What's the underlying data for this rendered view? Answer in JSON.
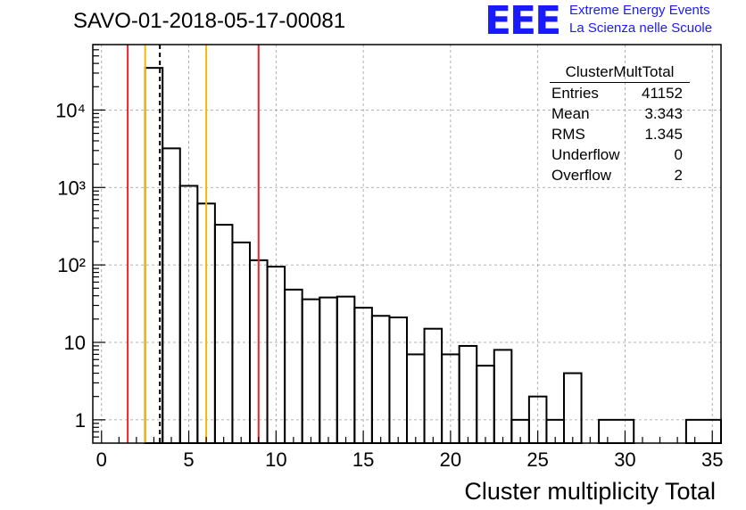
{
  "header": {
    "title": "SAVO-01-2018-05-17-00081",
    "logo_text": "EEE",
    "tagline_1": "Extreme Energy Events",
    "tagline_2": "La Scienza nelle Scuole"
  },
  "stats_box": {
    "name": "ClusterMultTotal",
    "rows": [
      {
        "label": "Entries",
        "value": "41152"
      },
      {
        "label": "Mean",
        "value": "3.343"
      },
      {
        "label": "RMS",
        "value": "1.345"
      },
      {
        "label": "Underflow",
        "value": "0"
      },
      {
        "label": "Overflow",
        "value": "2"
      }
    ]
  },
  "colors": {
    "red_line": "#e8262a",
    "yellow_line": "#f5b800",
    "logo": "#1a1aff",
    "grid": "#9a9a9a",
    "histogram": "#000000"
  },
  "chart_data": {
    "type": "histogram",
    "title": "SAVO-01-2018-05-17-00081",
    "xlabel": "Cluster multiplicity Total",
    "ylabel": "",
    "xlim": [
      -0.5,
      35.5
    ],
    "ylim": [
      0.5,
      70000
    ],
    "yscale": "log",
    "grid": true,
    "bin_width": 1,
    "x_ticks": [
      0,
      5,
      10,
      15,
      20,
      25,
      30,
      35
    ],
    "y_ticks": [
      {
        "value": 1,
        "label": "1"
      },
      {
        "value": 10,
        "label": "10"
      },
      {
        "value": 100,
        "label": "10²"
      },
      {
        "value": 1000,
        "label": "10³"
      },
      {
        "value": 10000,
        "label": "10⁴"
      }
    ],
    "bins": [
      {
        "low": 2.5,
        "high": 3.5,
        "count": 35000
      },
      {
        "low": 3.5,
        "high": 4.5,
        "count": 3200
      },
      {
        "low": 4.5,
        "high": 5.5,
        "count": 1050
      },
      {
        "low": 5.5,
        "high": 6.5,
        "count": 620
      },
      {
        "low": 6.5,
        "high": 7.5,
        "count": 330
      },
      {
        "low": 7.5,
        "high": 8.5,
        "count": 195
      },
      {
        "low": 8.5,
        "high": 9.5,
        "count": 115
      },
      {
        "low": 9.5,
        "high": 10.5,
        "count": 95
      },
      {
        "low": 10.5,
        "high": 11.5,
        "count": 48
      },
      {
        "low": 11.5,
        "high": 12.5,
        "count": 36
      },
      {
        "low": 12.5,
        "high": 13.5,
        "count": 38
      },
      {
        "low": 13.5,
        "high": 14.5,
        "count": 39
      },
      {
        "low": 14.5,
        "high": 15.5,
        "count": 28
      },
      {
        "low": 15.5,
        "high": 16.5,
        "count": 22
      },
      {
        "low": 16.5,
        "high": 17.5,
        "count": 21
      },
      {
        "low": 17.5,
        "high": 18.5,
        "count": 7
      },
      {
        "low": 18.5,
        "high": 19.5,
        "count": 15
      },
      {
        "low": 19.5,
        "high": 20.5,
        "count": 7
      },
      {
        "low": 20.5,
        "high": 21.5,
        "count": 9
      },
      {
        "low": 21.5,
        "high": 22.5,
        "count": 5
      },
      {
        "low": 22.5,
        "high": 23.5,
        "count": 8
      },
      {
        "low": 23.5,
        "high": 24.5,
        "count": 1
      },
      {
        "low": 24.5,
        "high": 25.5,
        "count": 2
      },
      {
        "low": 25.5,
        "high": 26.5,
        "count": 1
      },
      {
        "low": 26.5,
        "high": 27.5,
        "count": 4
      },
      {
        "low": 27.5,
        "high": 28.5,
        "count": 0
      },
      {
        "low": 28.5,
        "high": 30.5,
        "count": 1
      },
      {
        "low": 30.5,
        "high": 33.5,
        "count": 0
      },
      {
        "low": 33.5,
        "high": 35.5,
        "count": 1
      }
    ],
    "vertical_lines": [
      {
        "x": 1.5,
        "color": "red",
        "style": "solid"
      },
      {
        "x": 2.5,
        "color": "yellow",
        "style": "solid"
      },
      {
        "x": 3.343,
        "color": "black",
        "style": "dashed"
      },
      {
        "x": 6,
        "color": "yellow",
        "style": "solid"
      },
      {
        "x": 9,
        "color": "red",
        "style": "solid"
      }
    ]
  }
}
